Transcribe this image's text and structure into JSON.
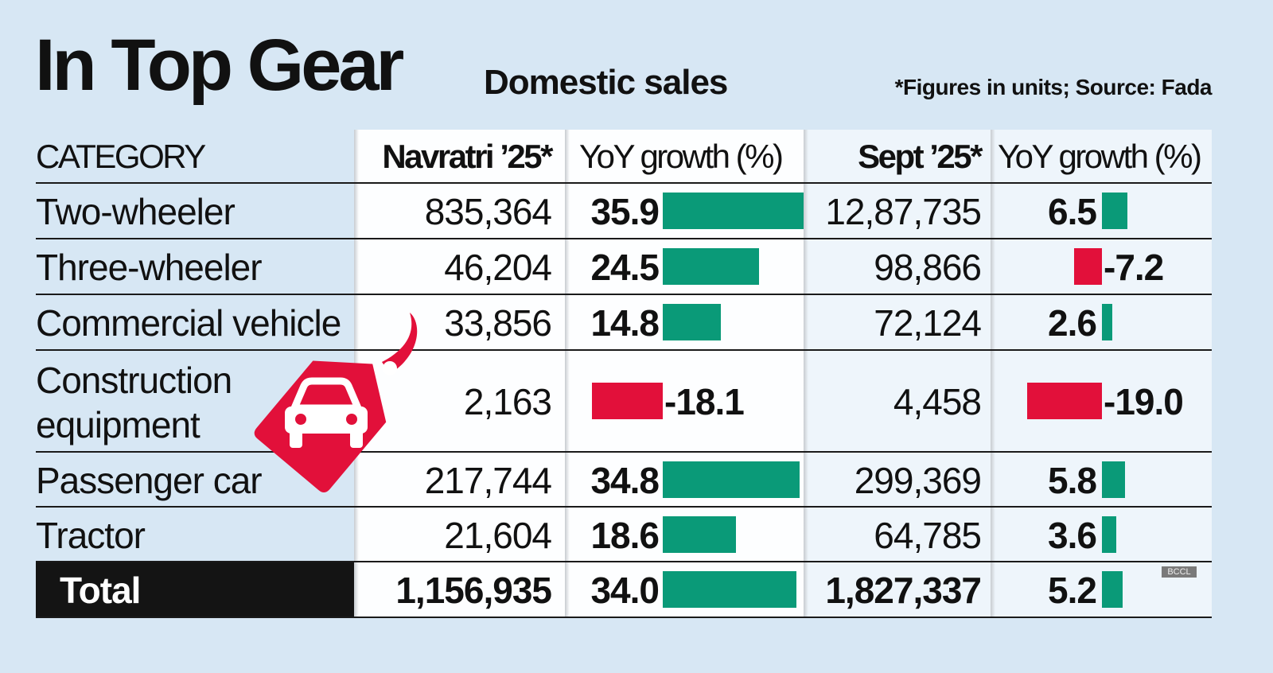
{
  "header": {
    "title": "In Top Gear",
    "subtitle": "Domestic sales",
    "note": "*Figures in units;  Source: Fada"
  },
  "watermark": "BCCL",
  "colors": {
    "positive": "#0a9a78",
    "negative": "#e2103a",
    "background": "#d7e7f4",
    "total_row": "#141414"
  },
  "icons": {
    "tag": "price-tag-car-icon"
  },
  "chart_data": {
    "type": "table",
    "columns": [
      "CATEGORY",
      "Navratri ’25*",
      "YoY growth (%)",
      "Sept ’25*",
      "YoY growth (%)"
    ],
    "rows": [
      {
        "category": "Two-wheeler",
        "navratri": "835,364",
        "navratri_yoy": 35.9,
        "sept": "12,87,735",
        "sept_yoy": 6.5
      },
      {
        "category": "Three-wheeler",
        "navratri": "46,204",
        "navratri_yoy": 24.5,
        "sept": "98,866",
        "sept_yoy": -7.2
      },
      {
        "category": "Commercial vehicle",
        "navratri": "33,856",
        "navratri_yoy": 14.8,
        "sept": "72,124",
        "sept_yoy": 2.6
      },
      {
        "category": "Construction equipment",
        "navratri": "2,163",
        "navratri_yoy": -18.1,
        "sept": "4,458",
        "sept_yoy": -19.0
      },
      {
        "category": "Passenger car",
        "navratri": "217,744",
        "navratri_yoy": 34.8,
        "sept": "299,369",
        "sept_yoy": 5.8
      },
      {
        "category": "Tractor",
        "navratri": "21,604",
        "navratri_yoy": 18.6,
        "sept": "64,785",
        "sept_yoy": 3.6
      },
      {
        "category": "Total",
        "navratri": "1,156,935",
        "navratri_yoy": 34.0,
        "sept": "1,827,337",
        "sept_yoy": 5.2
      }
    ]
  }
}
